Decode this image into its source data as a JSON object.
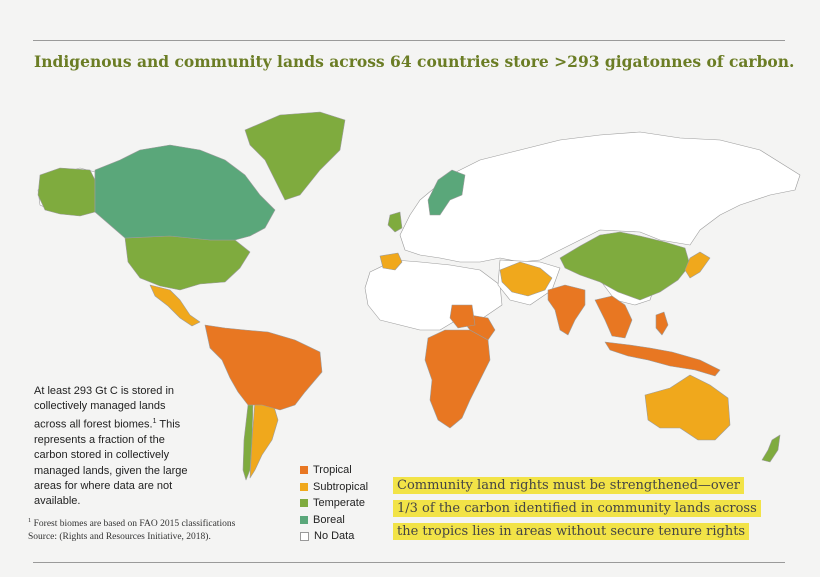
{
  "title": "Indigenous and community lands across 64 countries store >293 gigatonnes of carbon.",
  "note": {
    "text_before": "At least 293 Gt C is stored in collectively managed lands across all forest biomes.",
    "sup": "1",
    "text_after": " This represents a fraction of the carbon stored in collectively managed lands, given the large areas for where data are not available."
  },
  "footnote": {
    "sup": "1",
    "line1": " Forest biomes are based on FAO 2015 classifications",
    "line2": "Source: (Rights and Resources Initiative, 2018)."
  },
  "legend": [
    {
      "label": "Tropical",
      "color": "#e87722"
    },
    {
      "label": "Subtropical",
      "color": "#f0a81c"
    },
    {
      "label": "Temperate",
      "color": "#7fab3e"
    },
    {
      "label": "Boreal",
      "color": "#5aa77a"
    },
    {
      "label": "No Data",
      "color": "#ffffff"
    }
  ],
  "highlight": [
    "Community land rights must be strengthened—over",
    "1/3 of the carbon identified in community lands across",
    "the tropics lies in areas without secure tenure rights"
  ],
  "colors": {
    "tropical": "#e87722",
    "subtropical": "#f0a81c",
    "temperate": "#7fab3e",
    "boreal": "#5aa77a",
    "nodata": "#ffffff"
  }
}
